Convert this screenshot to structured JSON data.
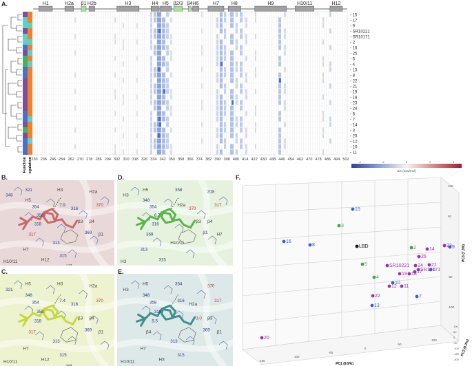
{
  "figure": {
    "panel_labels": {
      "A": "A.",
      "B": "B.",
      "C": "C.",
      "D": "D.",
      "E": "E.",
      "F": "F."
    }
  },
  "heatmap": {
    "helices": [
      "H1",
      "H2a",
      "β1",
      "H2b",
      "H3",
      "H4",
      "H5",
      "β2/3",
      "β4",
      "H6",
      "H7",
      "H8",
      "H9",
      "H10/11",
      "H12"
    ],
    "sheet_color": "#a6e0a0",
    "helix_color": "#a0a0a0",
    "row_labels": [
      "15",
      "17",
      "9",
      "SR10221",
      "SR10171",
      "2",
      "16",
      "25",
      "5",
      "4",
      "13",
      "8",
      "22",
      "21",
      "19",
      "18",
      "23",
      "24",
      "6",
      "7",
      "14",
      "3",
      "20",
      "12",
      "10",
      "11"
    ],
    "x_ticks": [
      "230",
      "238",
      "246",
      "254",
      "262",
      "270",
      "278",
      "286",
      "294",
      "302",
      "310",
      "318",
      "326",
      "334",
      "342",
      "350",
      "358",
      "366",
      "374",
      "382",
      "390",
      "398",
      "406",
      "414",
      "422",
      "430",
      "438",
      "446",
      "454",
      "462",
      "470",
      "478",
      "486",
      "494",
      "502"
    ],
    "side_labels": [
      "Function",
      "Regulation"
    ],
    "function_colors": [
      "#7b4f9e",
      "#5ecfc9",
      "#5ecfc9",
      "#7b4f9e",
      "#5ecfc9",
      "#5ecfc9",
      "#4b6fd1",
      "#7b4f9e",
      "#4bb05c",
      "#4bb05c",
      "#4b6fd1",
      "#4b6fd1",
      "#7b4f9e",
      "#7b4f9e",
      "#7b4f9e",
      "#7b4f9e",
      "#7b4f9e",
      "#7b4f9e",
      "#4b6fd1",
      "#4b6fd1",
      "#7b4f9e",
      "#4bb05c",
      "#7b4f9e",
      "#4b6fd1",
      "#4b6fd1",
      "#4b6fd1"
    ],
    "regulation_colors": [
      "#f0832a",
      "#f0832a",
      "#5ecfc9",
      "#f0832a",
      "#f0832a",
      "#5ecfc9",
      "#f0832a",
      "#5ecfc9",
      "#f0832a",
      "#5ecfc9",
      "#f0832a",
      "#f0832a",
      "#f0832a",
      "#f0832a",
      "#f0832a",
      "#f0832a",
      "#f0832a",
      "#f0832a",
      "#f0832a",
      "#5ecfc9",
      "#f0832a",
      "#f0832a",
      "#f0832a",
      "#5ecfc9",
      "#f0832a",
      "#f0832a"
    ],
    "colorbar_label": "ΔG (kcal/mol)",
    "colorbar_ticks": [
      "-4",
      "-2",
      "0",
      "2",
      "4"
    ]
  },
  "structures": {
    "B": {
      "labels": [
        "348",
        "321",
        "H5",
        "354",
        "H3",
        "358",
        "318",
        "7.9",
        "316",
        "H2a",
        "370",
        "β3",
        "β4",
        "317",
        "369",
        "β1",
        "H7",
        "313",
        "H10/11",
        "H12",
        "315",
        "H3"
      ],
      "tint": "#e9d8d8",
      "ligand": "#c86a6a"
    },
    "C": {
      "labels": [
        "321",
        "H5",
        "348",
        "354",
        "H3",
        "358",
        "318",
        "7.4",
        "316",
        "H2a",
        "370",
        "β3",
        "β4",
        "317",
        "369",
        "β1",
        "H7",
        "313",
        "H10/11",
        "H12",
        "315",
        "H3"
      ],
      "tint": "#eef3cf",
      "ligand": "#c6d83c"
    },
    "D": {
      "labels": [
        "H3",
        "H5",
        "348",
        "354",
        "358",
        "6.7",
        "316",
        "H2a",
        "370",
        "318",
        "317",
        "β3",
        "β4",
        "369",
        "β1",
        "H7",
        "313",
        "H10/11",
        "H3",
        "315"
      ],
      "tint": "#e6f2de",
      "ligand": "#58b548"
    },
    "E": {
      "labels": [
        "H3",
        "H5",
        "348",
        "358",
        "354",
        "318",
        "5.5",
        "316",
        "H2a",
        "370",
        "317",
        "3.0",
        "β3",
        "β4",
        "369",
        "β1",
        "H7",
        "313",
        "H10/11",
        "H3",
        "315"
      ],
      "tint": "#dde9e8",
      "ligand": "#3d8f8c"
    }
  },
  "pca": {
    "xlabel": "PC1 (9.9%)",
    "ylabel": "PC3 (7.3%)",
    "zlabel": "PC2 (8.3%)",
    "x_ticks": [
      "-150",
      "-100",
      "-50",
      "0",
      "50",
      "100"
    ],
    "y_ticks": [
      "100",
      "50",
      "0",
      "-50",
      "-100"
    ],
    "z_ticks": [
      "100",
      "50",
      "0",
      "-50",
      "-100",
      "-150",
      "-200"
    ],
    "colors": {
      "purple": "#9b2fae",
      "blue": "#3f5fc6",
      "green": "#3aa447",
      "black": "#111111"
    },
    "points": [
      {
        "label": "15",
        "c": "blue"
      },
      {
        "label": "3",
        "c": "green"
      },
      {
        "label": "16",
        "c": "blue"
      },
      {
        "label": "8",
        "c": "blue"
      },
      {
        "label": "LBD",
        "c": "black"
      },
      {
        "label": "2",
        "c": "green"
      },
      {
        "label": "14",
        "c": "purple"
      },
      {
        "label": "23",
        "c": "purple"
      },
      {
        "label": "9",
        "c": "blue"
      },
      {
        "label": "5",
        "c": "green"
      },
      {
        "label": "25",
        "c": "purple"
      },
      {
        "label": "24",
        "c": "purple"
      },
      {
        "label": "21",
        "c": "purple"
      },
      {
        "label": "SR10221",
        "c": "purple"
      },
      {
        "label": "6",
        "c": "blue"
      },
      {
        "label": "SR10171",
        "c": "purple"
      },
      {
        "label": "17",
        "c": "purple"
      },
      {
        "label": "18",
        "c": "purple"
      },
      {
        "label": "19",
        "c": "purple"
      },
      {
        "label": "4",
        "c": "green"
      },
      {
        "label": "10",
        "c": "blue"
      },
      {
        "label": "12",
        "c": "purple"
      },
      {
        "label": "11",
        "c": "purple"
      },
      {
        "label": "22",
        "c": "purple"
      },
      {
        "label": "7",
        "c": "blue"
      },
      {
        "label": "13",
        "c": "blue"
      },
      {
        "label": "20",
        "c": "purple"
      }
    ]
  }
}
